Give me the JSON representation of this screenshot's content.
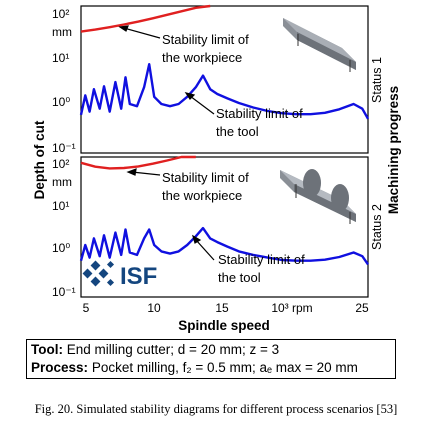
{
  "chart_data": [
    {
      "type": "line",
      "panel": "Status 1",
      "yscale": "log",
      "ylim": [
        0.1,
        100
      ],
      "xlim": [
        5,
        25
      ],
      "y_ticks": [
        "10²",
        "10¹",
        "10⁰",
        "10⁻¹"
      ],
      "y_unit": "mm",
      "series": [
        {
          "name": "Stability limit of the workpiece",
          "color": "#e02020",
          "x": [
            5.0,
            6.0,
            7.0,
            8.0,
            9.0,
            10.0,
            11.0,
            12.0,
            13.0,
            14.0
          ],
          "y": [
            30,
            33,
            37,
            42,
            48,
            56,
            66,
            78,
            92,
            108
          ]
        },
        {
          "name": "Stability limit of the tool",
          "color": "#1010e0",
          "x": [
            5.0,
            5.3,
            5.6,
            5.9,
            6.3,
            6.6,
            7.0,
            7.4,
            7.8,
            8.1,
            8.4,
            8.9,
            9.4,
            9.75,
            10.1,
            10.6,
            11.2,
            11.8,
            12.4,
            13.0,
            13.5,
            14.0,
            14.5,
            15.2,
            16.0,
            17.0,
            18.0,
            19.0,
            20.0,
            21.0,
            22.0,
            23.0,
            24.0,
            24.6,
            25.0
          ],
          "y": [
            0.6,
            1.5,
            0.7,
            2.0,
            0.8,
            2.3,
            0.7,
            2.8,
            0.8,
            3.5,
            1.0,
            0.9,
            2.2,
            6.5,
            1.4,
            1.0,
            0.9,
            1.0,
            1.4,
            2.2,
            3.8,
            2.0,
            1.6,
            1.3,
            1.05,
            0.85,
            0.72,
            0.65,
            0.62,
            0.62,
            0.66,
            0.78,
            1.0,
            0.8,
            0.5
          ]
        }
      ],
      "annotations": [
        "Stability limit of",
        "the workpiece",
        "Stability limit of",
        "the tool"
      ]
    },
    {
      "type": "line",
      "panel": "Status 2",
      "yscale": "log",
      "ylim": [
        0.1,
        100
      ],
      "xlim": [
        5,
        25
      ],
      "y_ticks": [
        "10²",
        "10¹",
        "10⁰",
        "10⁻¹"
      ],
      "y_unit": "mm",
      "series": [
        {
          "name": "Stability limit of the workpiece",
          "color": "#e02020",
          "x": [
            5.0,
            6.0,
            7.0,
            8.0,
            9.0,
            10.0,
            11.0,
            12.0,
            13.0
          ],
          "y": [
            75,
            62,
            57,
            58,
            63,
            72,
            84,
            100,
            118
          ]
        },
        {
          "name": "Stability limit of the tool",
          "color": "#1010e0",
          "x": [
            5.0,
            5.3,
            5.6,
            5.9,
            6.3,
            6.6,
            7.0,
            7.4,
            7.8,
            8.1,
            8.4,
            8.9,
            9.4,
            9.75,
            10.1,
            10.6,
            11.2,
            11.8,
            12.4,
            13.0,
            13.5,
            14.0,
            14.5,
            15.2,
            16.0,
            17.0,
            18.0,
            19.0,
            20.0,
            21.0,
            22.0,
            23.0,
            24.0,
            24.6,
            25.0
          ],
          "y": [
            0.6,
            1.3,
            0.7,
            1.8,
            0.75,
            2.1,
            0.7,
            2.4,
            0.8,
            2.8,
            0.9,
            0.8,
            1.8,
            2.8,
            1.3,
            0.95,
            0.85,
            0.95,
            1.3,
            2.0,
            3.0,
            1.8,
            1.5,
            1.2,
            0.95,
            0.8,
            0.7,
            0.62,
            0.6,
            0.6,
            0.63,
            0.72,
            0.9,
            0.75,
            0.5
          ]
        }
      ],
      "annotations": [
        "Stability limit of",
        "the workpiece",
        "Stability limit of",
        "the tool"
      ]
    }
  ],
  "axes": {
    "y_label": "Depth of cut",
    "x_label": "Spindle speed",
    "x_ticks": [
      "5",
      "10",
      "15",
      "25"
    ],
    "x_unit_tick": "10³ rpm",
    "right_label": "Machining progress",
    "status_labels": [
      "Status 1",
      "Status 2"
    ]
  },
  "logo": {
    "text": "ISF"
  },
  "params": {
    "tool_label": "Tool:",
    "tool_text": "End milling cutter; d = 20 mm; z = 3",
    "process_label": "Process:",
    "process_text": "Pocket milling, f₂ = 0.5 mm; aₑ max = 20 mm"
  },
  "caption": "Fig. 20. Simulated stability diagrams for different process scenarios [53]"
}
